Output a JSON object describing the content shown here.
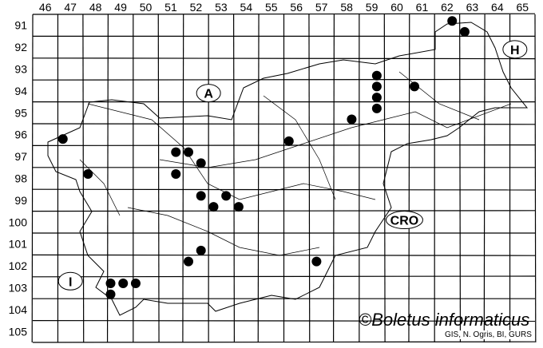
{
  "map": {
    "columns": [
      46,
      47,
      48,
      49,
      50,
      51,
      52,
      53,
      54,
      55,
      56,
      57,
      58,
      59,
      60,
      61,
      62,
      63,
      64,
      65
    ],
    "rows": [
      91,
      92,
      93,
      94,
      95,
      96,
      97,
      98,
      99,
      100,
      101,
      102,
      103,
      104,
      105
    ],
    "country_labels": [
      {
        "text": "A",
        "col": 52.5,
        "row": 94.1
      },
      {
        "text": "H",
        "col": 64.7,
        "row": 92.1
      },
      {
        "text": "CRO",
        "col": 60.3,
        "row": 99.9
      },
      {
        "text": "I",
        "col": 47.0,
        "row": 102.7
      }
    ],
    "records": [
      {
        "col": 62.2,
        "row": 90.8
      },
      {
        "col": 62.7,
        "row": 91.3
      },
      {
        "col": 59.2,
        "row": 93.3
      },
      {
        "col": 59.2,
        "row": 93.8
      },
      {
        "col": 59.2,
        "row": 94.3
      },
      {
        "col": 59.2,
        "row": 94.8
      },
      {
        "col": 60.7,
        "row": 93.8
      },
      {
        "col": 58.2,
        "row": 95.3
      },
      {
        "col": 55.7,
        "row": 96.3
      },
      {
        "col": 46.7,
        "row": 96.2
      },
      {
        "col": 51.2,
        "row": 96.8
      },
      {
        "col": 51.7,
        "row": 96.8
      },
      {
        "col": 52.2,
        "row": 97.3
      },
      {
        "col": 47.7,
        "row": 97.8
      },
      {
        "col": 51.2,
        "row": 97.8
      },
      {
        "col": 52.2,
        "row": 98.8
      },
      {
        "col": 53.2,
        "row": 98.8
      },
      {
        "col": 52.7,
        "row": 99.3
      },
      {
        "col": 53.7,
        "row": 99.3
      },
      {
        "col": 52.2,
        "row": 101.3
      },
      {
        "col": 51.7,
        "row": 101.8
      },
      {
        "col": 56.8,
        "row": 101.8
      },
      {
        "col": 48.6,
        "row": 102.8
      },
      {
        "col": 49.1,
        "row": 102.8
      },
      {
        "col": 49.6,
        "row": 102.8
      },
      {
        "col": 48.6,
        "row": 103.3
      }
    ],
    "marker_color": "#000000"
  },
  "credit": "©Boletus informaticus",
  "source": "GIS, N. Ogris, BI, GURS"
}
